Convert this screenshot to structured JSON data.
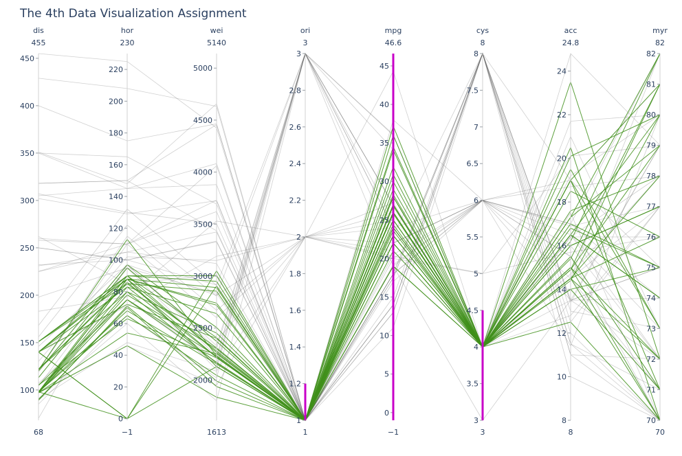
{
  "chart_data": {
    "type": "parallel_coordinates",
    "title": "The 4th Data Visualization Assignment",
    "colors": {
      "selected": "#3f8f1a",
      "unselected": "#555555",
      "brush": "#c800c8",
      "text": "#2a3f5f"
    },
    "dimensions": [
      {
        "name": "dis",
        "range": [
          68,
          455
        ],
        "range_labels": [
          "68",
          "455"
        ],
        "ticks": [
          100,
          150,
          200,
          250,
          300,
          350,
          400,
          450
        ]
      },
      {
        "name": "hor",
        "range": [
          -1,
          230
        ],
        "range_labels": [
          "−1",
          "230"
        ],
        "ticks": [
          0,
          20,
          40,
          60,
          80,
          100,
          120,
          140,
          160,
          180,
          200,
          220
        ]
      },
      {
        "name": "wei",
        "range": [
          1613,
          5140
        ],
        "range_labels": [
          "1613",
          "5140"
        ],
        "ticks": [
          2000,
          2500,
          3000,
          3500,
          4000,
          4500,
          5000
        ]
      },
      {
        "name": "ori",
        "range": [
          1,
          3
        ],
        "range_labels": [
          "1",
          "3"
        ],
        "ticks": [
          1,
          1.2,
          1.4,
          1.6,
          1.8,
          2,
          2.2,
          2.4,
          2.6,
          2.8,
          3
        ],
        "brush": [
          1,
          1.2
        ]
      },
      {
        "name": "mpg",
        "range": [
          -1,
          46.6
        ],
        "range_labels": [
          "−1",
          "46.6"
        ],
        "ticks": [
          0,
          5,
          10,
          15,
          20,
          25,
          30,
          35,
          40,
          45
        ],
        "brush": [
          -1,
          46.6
        ]
      },
      {
        "name": "cys",
        "range": [
          3,
          8
        ],
        "range_labels": [
          "3",
          "8"
        ],
        "ticks": [
          3,
          3.5,
          4,
          4.5,
          5,
          5.5,
          6,
          6.5,
          7,
          7.5,
          8
        ],
        "brush": [
          3,
          4.5
        ]
      },
      {
        "name": "acc",
        "range": [
          8,
          24.8
        ],
        "range_labels": [
          "8",
          "24.8"
        ],
        "ticks": [
          8,
          10,
          12,
          14,
          16,
          18,
          20,
          22,
          24
        ]
      },
      {
        "name": "myr",
        "range": [
          70,
          82
        ],
        "range_labels": [
          "70",
          "82"
        ],
        "ticks": [
          70,
          71,
          72,
          73,
          74,
          75,
          76,
          77,
          78,
          79,
          80,
          81,
          82
        ]
      }
    ],
    "records": [
      [
        97,
        88,
        2130,
        1,
        27,
        4,
        14.5,
        70
      ],
      [
        97,
        46,
        1835,
        1,
        26,
        4,
        20.5,
        70
      ],
      [
        113,
        95,
        2372,
        1,
        24,
        4,
        15,
        70
      ],
      [
        121,
        113,
        2234,
        1,
        21,
        4,
        12.5,
        70
      ],
      [
        98,
        90,
        2265,
        1,
        22,
        4,
        15.5,
        71
      ],
      [
        140,
        90,
        2408,
        1,
        22,
        4,
        19,
        71
      ],
      [
        122,
        86,
        2220,
        1,
        25,
        4,
        14,
        71
      ],
      [
        98,
        80,
        2164,
        1,
        28,
        4,
        15,
        72
      ],
      [
        97,
        54,
        2254,
        1,
        23,
        4,
        23.5,
        72
      ],
      [
        120,
        97,
        2506,
        1,
        23,
        4,
        14.5,
        72
      ],
      [
        140,
        72,
        2401,
        1,
        19,
        4,
        19.5,
        73
      ],
      [
        97,
        88,
        2279,
        1,
        19,
        4,
        19,
        73
      ],
      [
        98,
        83,
        2219,
        1,
        26,
        4,
        16.5,
        74
      ],
      [
        122,
        80,
        2451,
        1,
        26,
        4,
        16.5,
        74
      ],
      [
        140,
        83,
        2639,
        1,
        23,
        4,
        17,
        75
      ],
      [
        90,
        70,
        1937,
        1,
        29,
        4,
        14,
        75
      ],
      [
        122,
        85,
        2310,
        1,
        24,
        4,
        18.5,
        76
      ],
      [
        97,
        78,
        2300,
        1,
        28,
        4,
        14.5,
        76
      ],
      [
        151,
        88,
        2740,
        1,
        25,
        4,
        16,
        77
      ],
      [
        97,
        75,
        2171,
        1,
        30,
        4,
        16,
        77
      ],
      [
        105,
        75,
        2230,
        1,
        30.9,
        4,
        14.5,
        78
      ],
      [
        151,
        85,
        2855,
        1,
        22,
        4,
        17.6,
        78
      ],
      [
        89,
        71,
        1990,
        1,
        31.9,
        4,
        14.9,
        79
      ],
      [
        140,
        88,
        2890,
        1,
        26.8,
        4,
        17.3,
        79
      ],
      [
        98,
        68,
        2155,
        1,
        34.5,
        4,
        16.5,
        80
      ],
      [
        151,
        90,
        3003,
        1,
        23.6,
        4,
        20.1,
        80
      ],
      [
        105,
        63,
        2215,
        1,
        37.2,
        4,
        14.9,
        81
      ],
      [
        140,
        88,
        2720,
        1,
        34.1,
        4,
        15.4,
        81
      ],
      [
        98,
        65,
        2045,
        1,
        36,
        4,
        16.2,
        82
      ],
      [
        151,
        90,
        2950,
        1,
        27,
        4,
        17.3,
        82
      ],
      [
        140,
        0,
        2905,
        1,
        24.4,
        4,
        16.8,
        75
      ],
      [
        98,
        0,
        2130,
        1,
        28.3,
        4,
        14.4,
        80
      ],
      [
        140,
        0,
        3050,
        1,
        25.8,
        4,
        19,
        81
      ],
      [
        307,
        130,
        3504,
        1,
        18,
        8,
        12,
        70
      ],
      [
        350,
        165,
        3693,
        1,
        15,
        8,
        11.5,
        70
      ],
      [
        318,
        150,
        3436,
        1,
        18,
        8,
        11,
        70
      ],
      [
        198,
        95,
        2833,
        1,
        22,
        6,
        15.5,
        70
      ],
      [
        400,
        175,
        4464,
        1,
        14,
        8,
        11.5,
        71
      ],
      [
        250,
        100,
        3329,
        1,
        18,
        6,
        15.5,
        71
      ],
      [
        429,
        208,
        4633,
        1,
        11,
        8,
        11,
        72
      ],
      [
        232,
        100,
        2914,
        1,
        20,
        6,
        16,
        72
      ],
      [
        350,
        145,
        4082,
        1,
        13,
        8,
        13,
        73
      ],
      [
        225,
        105,
        3121,
        1,
        18,
        6,
        16.5,
        73
      ],
      [
        318,
        150,
        4457,
        1,
        13,
        8,
        13.5,
        74
      ],
      [
        250,
        100,
        3336,
        1,
        17,
        6,
        17,
        74
      ],
      [
        455,
        225,
        4425,
        1,
        14,
        8,
        10,
        70
      ],
      [
        351,
        148,
        4657,
        1,
        14,
        8,
        13.5,
        75
      ],
      [
        258,
        110,
        3730,
        1,
        19,
        6,
        19,
        75
      ],
      [
        305,
        145,
        3880,
        1,
        17.5,
        8,
        12.5,
        77
      ],
      [
        231,
        105,
        3425,
        1,
        20.5,
        6,
        16.9,
        77
      ],
      [
        302,
        129,
        3725,
        1,
        17.5,
        8,
        13.4,
        79
      ],
      [
        225,
        110,
        3620,
        1,
        19.2,
        6,
        18.7,
        78
      ],
      [
        262,
        85,
        3015,
        1,
        38,
        6,
        17,
        82
      ],
      [
        260,
        110,
        4060,
        1,
        23,
        8,
        19,
        81
      ],
      [
        97,
        88,
        2130,
        3,
        27,
        4,
        14.5,
        71
      ],
      [
        113,
        95,
        2228,
        3,
        25,
        4,
        14,
        71
      ],
      [
        97,
        88,
        2100,
        3,
        27,
        4,
        16.5,
        72
      ],
      [
        70,
        97,
        2330,
        3,
        19,
        3,
        13.5,
        72
      ],
      [
        97,
        75,
        2155,
        3,
        24,
        4,
        16.4,
        76
      ],
      [
        119,
        97,
        2300,
        3,
        27,
        4,
        14.7,
        78
      ],
      [
        85,
        65,
        2020,
        3,
        34.1,
        4,
        19.2,
        80
      ],
      [
        107,
        75,
        2205,
        3,
        36,
        4,
        14.5,
        82
      ],
      [
        168,
        132,
        2910,
        3,
        22,
        6,
        11.4,
        80
      ],
      [
        156,
        122,
        2807,
        3,
        24,
        6,
        13.5,
        79
      ],
      [
        91,
        60,
        1800,
        3,
        36.1,
        4,
        16.4,
        78
      ],
      [
        121,
        110,
        2600,
        2,
        24,
        4,
        12.8,
        77
      ],
      [
        104,
        95,
        2375,
        2,
        25,
        4,
        17.5,
        70
      ],
      [
        97,
        46,
        1950,
        2,
        26,
        4,
        21,
        73
      ],
      [
        121,
        115,
        2671,
        2,
        21,
        4,
        13.5,
        75
      ],
      [
        146,
        97,
        2815,
        2,
        22,
        6,
        14.5,
        77
      ],
      [
        141,
        71,
        3190,
        2,
        27.2,
        4,
        24.8,
        79
      ],
      [
        90,
        48,
        2085,
        2,
        44.3,
        4,
        21.7,
        80
      ],
      [
        183,
        77,
        3530,
        2,
        20.3,
        5,
        20.1,
        79
      ],
      [
        130,
        102,
        3150,
        2,
        20,
        5,
        15.7,
        76
      ]
    ]
  }
}
